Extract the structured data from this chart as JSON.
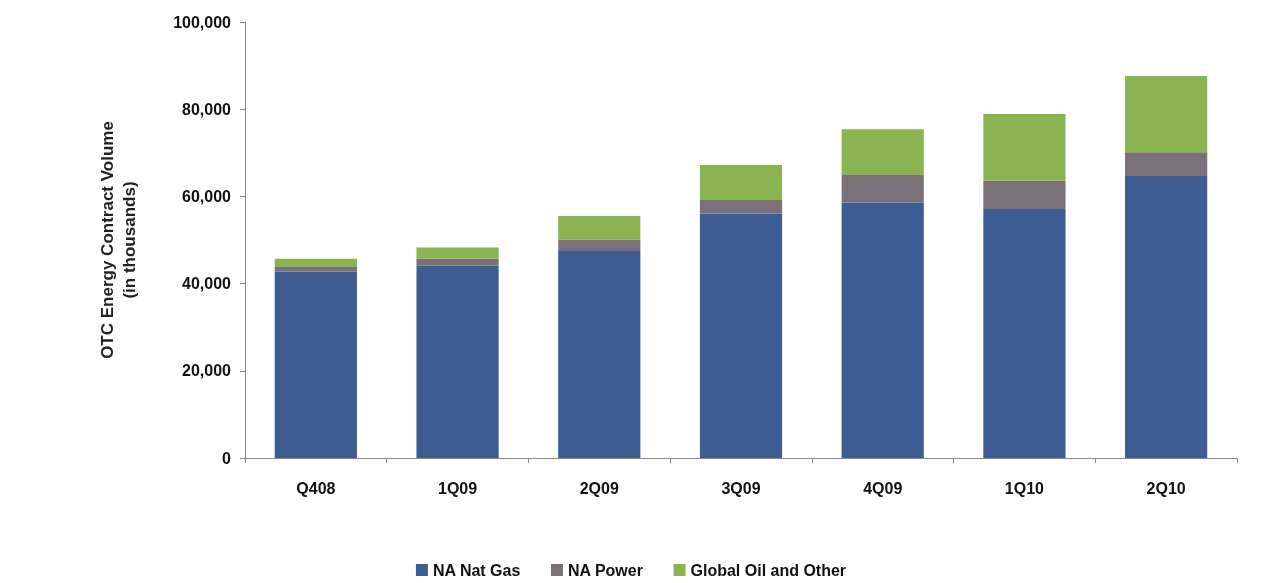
{
  "chart_data": {
    "type": "bar",
    "stacked": true,
    "ylabel": "OTC Energy Contract Volume\n(in thousands)",
    "categories": [
      "Q408",
      "1Q09",
      "2Q09",
      "3Q09",
      "4Q09",
      "1Q10",
      "2Q10"
    ],
    "series": [
      {
        "name": "NA Nat Gas",
        "color": "#3d5d92",
        "values": [
          42800,
          44100,
          47500,
          56100,
          58600,
          57100,
          64700
        ]
      },
      {
        "name": "NA Power",
        "color": "#7a7078",
        "values": [
          1000,
          1600,
          2600,
          3100,
          6300,
          6500,
          5400
        ]
      },
      {
        "name": "Global Oil and Other",
        "color": "#8ab452",
        "values": [
          1900,
          2600,
          5400,
          8000,
          10500,
          15300,
          17500
        ]
      }
    ],
    "ylim": [
      0,
      100000
    ],
    "yticks": [
      0,
      {
        "value": 20000,
        "label": "20,000"
      },
      {
        "value": 40000,
        "label": "40,000"
      },
      {
        "value": 60000,
        "label": "60,000"
      },
      {
        "value": 80000,
        "label": "80,000"
      },
      {
        "value": 100000,
        "label": "100,000"
      }
    ],
    "grid": false,
    "legend": "bottom"
  }
}
